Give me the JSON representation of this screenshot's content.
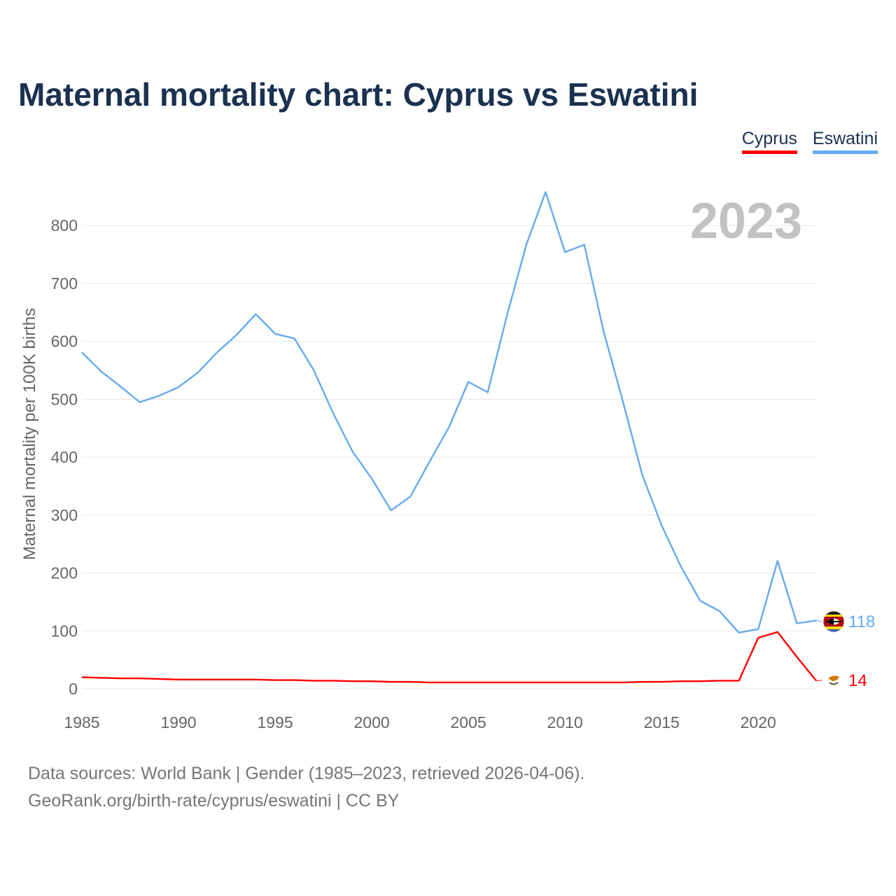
{
  "title": "Maternal mortality chart: Cyprus vs Eswatini",
  "legend": [
    {
      "name": "Cyprus",
      "color": "#ff0000"
    },
    {
      "name": "Eswatini",
      "color": "#66aaee"
    }
  ],
  "colors": {
    "cyprus": "#ff0000",
    "eswatini": "#66aaee",
    "year_label": "#c2c2c2",
    "axis_text": "#666666",
    "grid": "#e6e6e6"
  },
  "footer": {
    "line1": "Data sources: World Bank | Gender (1985–2023, retrieved 2026-04-06).",
    "line2": "GeoRank.org/birth-rate/cyprus/eswatini | CC BY"
  },
  "chart_data": {
    "type": "line",
    "ylabel": "Maternal mortality per 100K births",
    "xlabel": "",
    "year_label": "2023",
    "xlim": [
      1985,
      2023
    ],
    "ylim": [
      0,
      880
    ],
    "xticks": [
      1985,
      1990,
      1995,
      2000,
      2005,
      2010,
      2015,
      2020
    ],
    "yticks": [
      0,
      100,
      200,
      300,
      400,
      500,
      600,
      700,
      800
    ],
    "x": [
      1985,
      1986,
      1987,
      1988,
      1989,
      1990,
      1991,
      1992,
      1993,
      1994,
      1995,
      1996,
      1997,
      1998,
      1999,
      2000,
      2001,
      2002,
      2003,
      2004,
      2005,
      2006,
      2007,
      2008,
      2009,
      2010,
      2011,
      2012,
      2013,
      2014,
      2015,
      2016,
      2017,
      2018,
      2019,
      2020,
      2021,
      2022,
      2023
    ],
    "series": [
      {
        "name": "Eswatini",
        "end_label": "118",
        "values": [
          581,
          548,
          522,
          495,
          506,
          521,
          546,
          581,
          611,
          647,
          613,
          605,
          550,
          476,
          410,
          363,
          308,
          332,
          393,
          452,
          530,
          512,
          645,
          767,
          858,
          754,
          767,
          617,
          496,
          369,
          282,
          211,
          152,
          134,
          97,
          103,
          221,
          113,
          118
        ]
      },
      {
        "name": "Cyprus",
        "end_label": "14",
        "values": [
          20,
          19,
          18,
          18,
          17,
          16,
          16,
          16,
          16,
          16,
          15,
          15,
          14,
          14,
          13,
          13,
          12,
          12,
          11,
          11,
          11,
          11,
          11,
          11,
          11,
          11,
          11,
          11,
          11,
          12,
          12,
          13,
          13,
          14,
          14,
          88,
          98,
          55,
          14
        ]
      }
    ]
  }
}
